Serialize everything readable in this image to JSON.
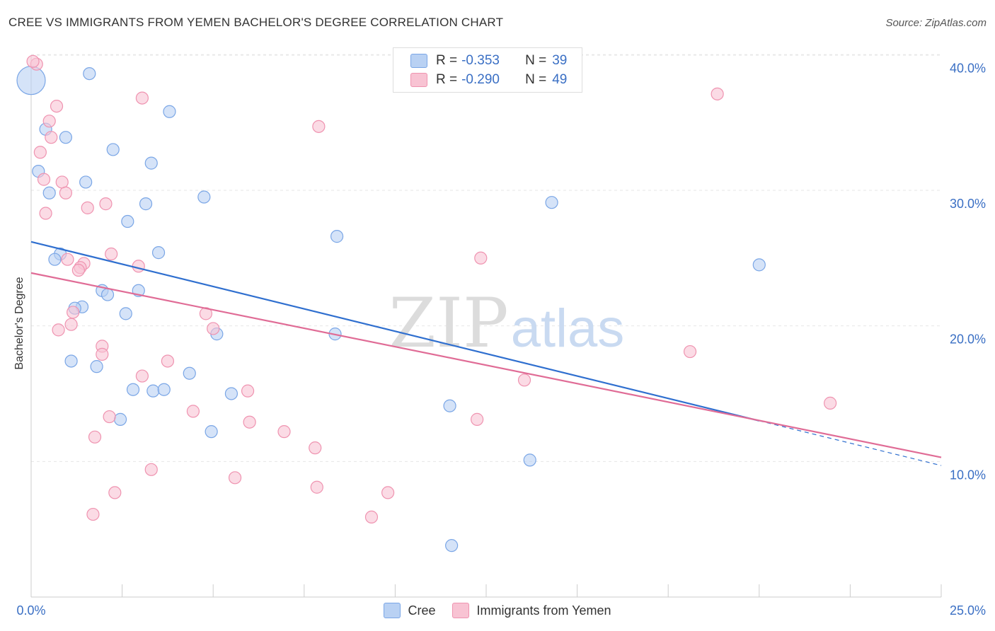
{
  "title": "CREE VS IMMIGRANTS FROM YEMEN BACHELOR'S DEGREE CORRELATION CHART",
  "source": "Source: ZipAtlas.com",
  "watermark": {
    "part1": "ZIP",
    "part2": "atlas"
  },
  "colors": {
    "cree_fill": "#b9d1f3",
    "cree_stroke": "#7aa6e6",
    "cree_line": "#2f6fcf",
    "yemen_fill": "#f8c3d3",
    "yemen_stroke": "#ef93b0",
    "yemen_line": "#e06c96",
    "value_blue": "#3a6fc4"
  },
  "legend_top": {
    "cree": {
      "r_label": "R =",
      "r_value": "-0.353",
      "n_label": "N =",
      "n_value": "39"
    },
    "yemen": {
      "r_label": "R =",
      "r_value": "-0.290",
      "n_label": "N =",
      "n_value": "49"
    }
  },
  "chart_data": {
    "type": "scatter",
    "title": "CREE VS IMMIGRANTS FROM YEMEN BACHELOR'S DEGREE CORRELATION CHART",
    "xlabel": "",
    "ylabel": "Bachelor's Degree",
    "xlim": [
      0,
      25
    ],
    "ylim": [
      0,
      40.9
    ],
    "x_tick_labels": [
      {
        "value": 0,
        "label": "0.0%"
      },
      {
        "value": 25,
        "label": "25.0%"
      }
    ],
    "y_tick_labels": [
      {
        "value": 10,
        "label": "10.0%"
      },
      {
        "value": 20,
        "label": "20.0%"
      },
      {
        "value": 30,
        "label": "30.0%"
      },
      {
        "value": 40,
        "label": "40.0%"
      }
    ],
    "grid": true,
    "legend_position": "bottom",
    "series": [
      {
        "name": "Cree",
        "trend": {
          "x": [
            0,
            20
          ],
          "y": [
            26.2,
            13.0
          ],
          "dashed_to": [
            25,
            9.7
          ]
        },
        "points": [
          {
            "x": 0.0,
            "y": 38.1,
            "big": true
          },
          {
            "x": 1.6,
            "y": 38.6
          },
          {
            "x": 0.4,
            "y": 34.5
          },
          {
            "x": 0.95,
            "y": 33.9
          },
          {
            "x": 3.8,
            "y": 35.8
          },
          {
            "x": 2.25,
            "y": 33.0
          },
          {
            "x": 3.3,
            "y": 32.0
          },
          {
            "x": 0.2,
            "y": 31.4
          },
          {
            "x": 1.5,
            "y": 30.6
          },
          {
            "x": 0.5,
            "y": 29.8
          },
          {
            "x": 4.75,
            "y": 29.5
          },
          {
            "x": 3.15,
            "y": 29.0
          },
          {
            "x": 2.65,
            "y": 27.7
          },
          {
            "x": 14.3,
            "y": 29.1
          },
          {
            "x": 8.4,
            "y": 26.6
          },
          {
            "x": 0.8,
            "y": 25.3
          },
          {
            "x": 3.5,
            "y": 25.4
          },
          {
            "x": 0.65,
            "y": 24.9
          },
          {
            "x": 20.0,
            "y": 24.5
          },
          {
            "x": 1.95,
            "y": 22.6
          },
          {
            "x": 2.1,
            "y": 22.3
          },
          {
            "x": 2.95,
            "y": 22.6
          },
          {
            "x": 1.4,
            "y": 21.4
          },
          {
            "x": 1.2,
            "y": 21.3
          },
          {
            "x": 2.6,
            "y": 20.9
          },
          {
            "x": 5.1,
            "y": 19.4
          },
          {
            "x": 8.35,
            "y": 19.4
          },
          {
            "x": 1.1,
            "y": 17.4
          },
          {
            "x": 1.8,
            "y": 17.0
          },
          {
            "x": 4.35,
            "y": 16.5
          },
          {
            "x": 2.8,
            "y": 15.3
          },
          {
            "x": 3.35,
            "y": 15.2
          },
          {
            "x": 3.65,
            "y": 15.3
          },
          {
            "x": 5.5,
            "y": 15.0
          },
          {
            "x": 11.5,
            "y": 14.1
          },
          {
            "x": 2.45,
            "y": 13.1
          },
          {
            "x": 4.95,
            "y": 12.2
          },
          {
            "x": 13.7,
            "y": 10.1
          },
          {
            "x": 11.55,
            "y": 3.8
          }
        ]
      },
      {
        "name": "Immigrants from Yemen",
        "trend": {
          "x": [
            0,
            25
          ],
          "y": [
            23.9,
            10.3
          ]
        },
        "points": [
          {
            "x": 0.15,
            "y": 39.3
          },
          {
            "x": 0.05,
            "y": 39.5
          },
          {
            "x": 3.05,
            "y": 36.8
          },
          {
            "x": 18.85,
            "y": 37.1
          },
          {
            "x": 0.7,
            "y": 36.2
          },
          {
            "x": 0.5,
            "y": 35.1
          },
          {
            "x": 7.9,
            "y": 34.7
          },
          {
            "x": 0.55,
            "y": 33.9
          },
          {
            "x": 0.25,
            "y": 32.8
          },
          {
            "x": 0.35,
            "y": 30.8
          },
          {
            "x": 0.85,
            "y": 30.6
          },
          {
            "x": 0.95,
            "y": 29.8
          },
          {
            "x": 2.05,
            "y": 29.0
          },
          {
            "x": 1.55,
            "y": 28.7
          },
          {
            "x": 0.4,
            "y": 28.3
          },
          {
            "x": 2.2,
            "y": 25.3
          },
          {
            "x": 12.35,
            "y": 25.0
          },
          {
            "x": 1.0,
            "y": 24.9
          },
          {
            "x": 1.45,
            "y": 24.6
          },
          {
            "x": 1.35,
            "y": 24.3
          },
          {
            "x": 2.95,
            "y": 24.4
          },
          {
            "x": 1.3,
            "y": 24.1
          },
          {
            "x": 1.15,
            "y": 21.0
          },
          {
            "x": 4.8,
            "y": 20.9
          },
          {
            "x": 1.1,
            "y": 20.1
          },
          {
            "x": 0.75,
            "y": 19.7
          },
          {
            "x": 5.0,
            "y": 19.8
          },
          {
            "x": 1.95,
            "y": 18.5
          },
          {
            "x": 1.95,
            "y": 17.9
          },
          {
            "x": 3.75,
            "y": 17.4
          },
          {
            "x": 18.1,
            "y": 18.1
          },
          {
            "x": 3.05,
            "y": 16.3
          },
          {
            "x": 13.55,
            "y": 16.0
          },
          {
            "x": 5.95,
            "y": 15.2
          },
          {
            "x": 21.95,
            "y": 14.3
          },
          {
            "x": 4.45,
            "y": 13.7
          },
          {
            "x": 2.15,
            "y": 13.3
          },
          {
            "x": 6.0,
            "y": 12.9
          },
          {
            "x": 12.25,
            "y": 13.1
          },
          {
            "x": 6.95,
            "y": 12.2
          },
          {
            "x": 1.75,
            "y": 11.8
          },
          {
            "x": 7.8,
            "y": 11.0
          },
          {
            "x": 3.3,
            "y": 9.4
          },
          {
            "x": 5.6,
            "y": 8.8
          },
          {
            "x": 7.85,
            "y": 8.1
          },
          {
            "x": 2.3,
            "y": 7.7
          },
          {
            "x": 9.8,
            "y": 7.7
          },
          {
            "x": 1.7,
            "y": 6.1
          },
          {
            "x": 9.35,
            "y": 5.9
          }
        ]
      }
    ]
  }
}
